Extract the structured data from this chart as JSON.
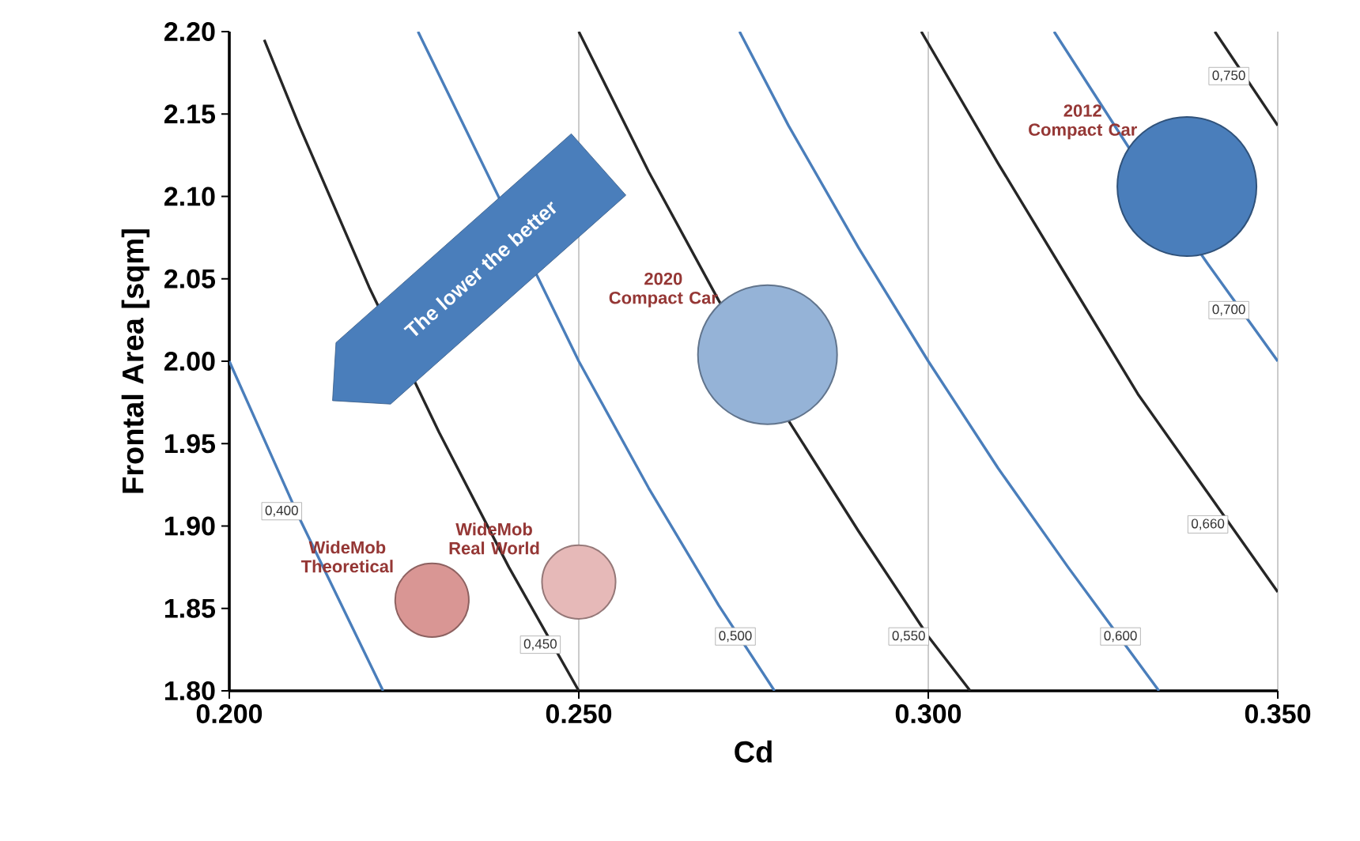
{
  "chart_data": {
    "type": "bubble",
    "xlabel": "Cd",
    "ylabel": "Frontal Area [sqm]",
    "xlim": [
      0.2,
      0.35
    ],
    "ylim": [
      1.8,
      2.2
    ],
    "xticks": [
      {
        "value": 0.2,
        "label": "0.200"
      },
      {
        "value": 0.25,
        "label": "0.250"
      },
      {
        "value": 0.3,
        "label": "0.300"
      },
      {
        "value": 0.35,
        "label": "0.350"
      }
    ],
    "yticks": [
      {
        "value": 1.8,
        "label": "1.80"
      },
      {
        "value": 1.85,
        "label": "1.85"
      },
      {
        "value": 1.9,
        "label": "1.90"
      },
      {
        "value": 1.95,
        "label": "1.95"
      },
      {
        "value": 2.0,
        "label": "2.00"
      },
      {
        "value": 2.05,
        "label": "2.05"
      },
      {
        "value": 2.1,
        "label": "2.10"
      },
      {
        "value": 2.15,
        "label": "2.15"
      },
      {
        "value": 2.2,
        "label": "2.20"
      }
    ],
    "grid": "x",
    "series": [
      {
        "type": "line",
        "color": "#4a7ebb",
        "x": [
          0.2,
          0.21,
          0.222
        ],
        "values": [
          2.0,
          1.905,
          1.8
        ]
      },
      {
        "type": "line",
        "color": "#262626",
        "x": [
          0.205,
          0.21,
          0.22,
          0.23,
          0.24,
          0.25
        ],
        "values": [
          2.195,
          2.143,
          2.045,
          1.957,
          1.875,
          1.8
        ]
      },
      {
        "type": "line",
        "color": "#4a7ebb",
        "x": [
          0.227,
          0.25,
          0.26,
          0.27,
          0.278
        ],
        "values": [
          2.2,
          2.0,
          1.923,
          1.852,
          1.8
        ]
      },
      {
        "type": "line",
        "color": "#262626",
        "x": [
          0.25,
          0.26,
          0.27,
          0.28,
          0.29,
          0.3,
          0.306
        ],
        "values": [
          2.2,
          2.115,
          2.037,
          1.964,
          1.897,
          1.833,
          1.8
        ]
      },
      {
        "type": "line",
        "color": "#4a7ebb",
        "x": [
          0.273,
          0.28,
          0.29,
          0.3,
          0.31,
          0.32,
          0.333
        ],
        "values": [
          2.2,
          2.143,
          2.069,
          2.0,
          1.935,
          1.875,
          1.8
        ]
      },
      {
        "type": "line",
        "color": "#262626",
        "x": [
          0.299,
          0.31,
          0.32,
          0.33,
          0.34,
          0.35
        ],
        "values": [
          2.2,
          2.12,
          2.05,
          1.98,
          1.92,
          1.86
        ]
      },
      {
        "type": "line",
        "color": "#4a7ebb",
        "x": [
          0.318,
          0.33,
          0.34,
          0.35
        ],
        "values": [
          2.2,
          2.121,
          2.059,
          2.0
        ]
      },
      {
        "type": "line",
        "color": "#262626",
        "x": [
          0.341,
          0.35
        ],
        "values": [
          2.2,
          2.143
        ]
      },
      {
        "name": "2012 Compact Car",
        "color": "#4a7ebb",
        "x": [
          0.337
        ],
        "values": [
          2.106
        ],
        "sizes": [
          1
        ]
      },
      {
        "name": "2020 Compact Car",
        "color": "#95b3d7",
        "x": [
          0.277
        ],
        "values": [
          2.004
        ],
        "sizes": [
          1
        ]
      },
      {
        "name": "WideMob Real World",
        "color": "#e6b9b8",
        "x": [
          0.25
        ],
        "values": [
          1.866
        ],
        "sizes": [
          0.28
        ]
      },
      {
        "name": "WideMob Theoretical",
        "color": "#d99694",
        "x": [
          0.229
        ],
        "values": [
          1.855
        ],
        "sizes": [
          0.28
        ]
      }
    ],
    "annotations": [
      "The lower the better",
      {
        "text": "0,400",
        "x": 0.2075,
        "y": 1.909
      },
      {
        "text": "0,450",
        "x": 0.2445,
        "y": 1.828
      },
      {
        "text": "0,500",
        "x": 0.2724,
        "y": 1.833
      },
      {
        "text": "0,550",
        "x": 0.2972,
        "y": 1.833
      },
      {
        "text": "0,600",
        "x": 0.3275,
        "y": 1.833
      },
      {
        "text": "0,660",
        "x": 0.34,
        "y": 1.901
      },
      {
        "text": "0,700",
        "x": 0.343,
        "y": 2.031
      },
      {
        "text": "0,750",
        "x": 0.343,
        "y": 2.173
      }
    ]
  }
}
